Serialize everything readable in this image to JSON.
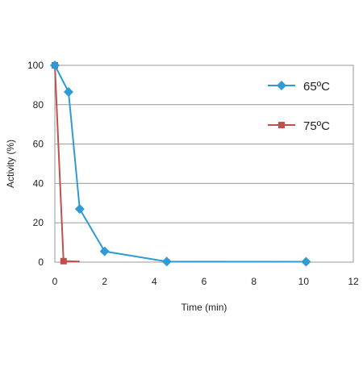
{
  "chart_data": {
    "type": "line",
    "xlabel": "Time (min)",
    "ylabel": "Activity (%)",
    "xlim": [
      0,
      12
    ],
    "ylim": [
      0,
      100
    ],
    "xticks": [
      0,
      2,
      4,
      6,
      8,
      10,
      12
    ],
    "yticks": [
      0,
      20,
      40,
      60,
      80,
      100
    ],
    "grid": {
      "horizontal": true,
      "vertical": false
    },
    "legend_position": "top-right, inside plot area",
    "series": [
      {
        "name": "65ºC",
        "color": "#2e9bd6",
        "marker": "diamond",
        "x": [
          0,
          0.55,
          1,
          2,
          4.5,
          10.1
        ],
        "y": [
          100,
          86.5,
          27,
          5.5,
          0.3,
          0.2
        ]
      },
      {
        "name": "75ºC",
        "color": "#c0504d",
        "marker": "square",
        "x": [
          0,
          0.35,
          1
        ],
        "y": [
          100,
          0.5,
          0.3
        ]
      }
    ]
  }
}
